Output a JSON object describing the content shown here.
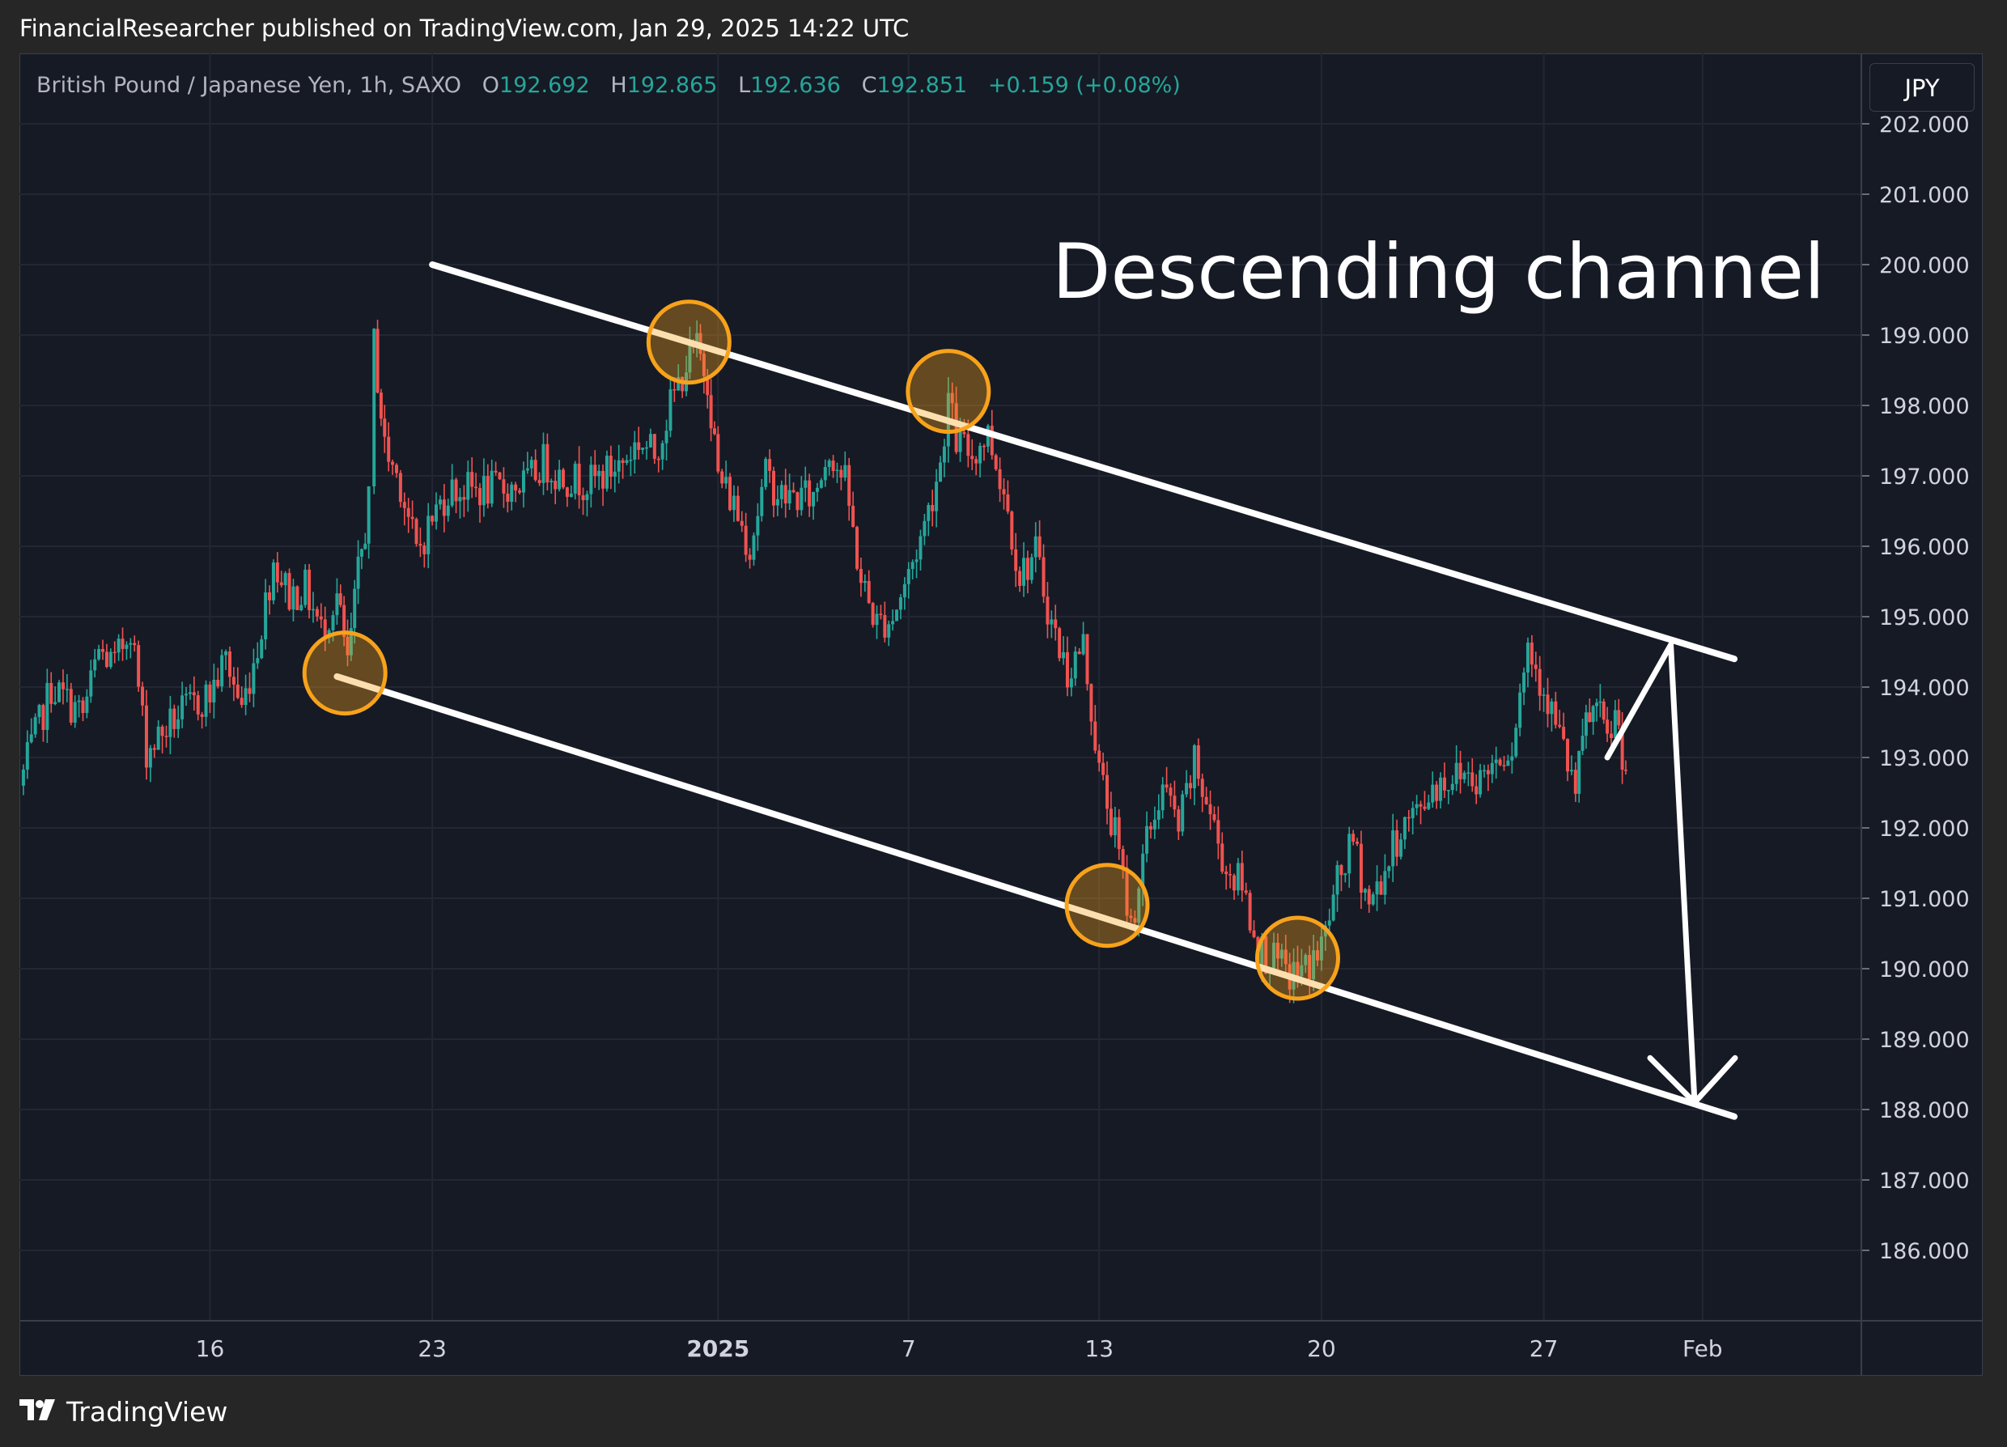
{
  "header": {
    "publish_text": "FinancialResearcher published on TradingView.com, Jan 29, 2025 14:22 UTC"
  },
  "symbol": {
    "name": "British Pound / Japanese Yen, 1h, SAXO",
    "open_label": "O",
    "open": "192.692",
    "high_label": "H",
    "high": "192.865",
    "low_label": "L",
    "low": "192.636",
    "close_label": "C",
    "close": "192.851",
    "change": "+0.159 (+0.08%)"
  },
  "currency_button": "JPY",
  "footer": {
    "brand": "TradingView"
  },
  "colors": {
    "up": "#26a69a",
    "down": "#ef5350",
    "channel": "#ffffff",
    "marker": "#f7a21b",
    "grid": "#232734",
    "background": "#161a25"
  },
  "chart_data": {
    "type": "candlestick",
    "title": "",
    "annotation": "Descending channel",
    "ylim": [
      185.0,
      203.0
    ],
    "y_ticks": [
      "202.000",
      "201.000",
      "200.000",
      "199.000",
      "198.000",
      "197.000",
      "196.000",
      "195.000",
      "194.000",
      "193.000",
      "192.000",
      "191.000",
      "190.000",
      "189.000",
      "188.000",
      "187.000",
      "186.000"
    ],
    "x_ticks": [
      "16",
      "23",
      "2025",
      "7",
      "13",
      "20",
      "27",
      "Feb"
    ],
    "x_tick_dates": [
      "2024-12-16",
      "2024-12-23",
      "2025-01-01",
      "2025-01-07",
      "2025-01-13",
      "2025-01-20",
      "2025-01-27",
      "2025-02-01"
    ],
    "x_range": [
      "2024-12-10",
      "2025-02-06"
    ],
    "price_path": [
      {
        "date": "2024-12-10T00:00",
        "price": 192.6
      },
      {
        "date": "2024-12-11T00:00",
        "price": 194.0
      },
      {
        "date": "2024-12-12T00:00",
        "price": 193.6
      },
      {
        "date": "2024-12-12T12:00",
        "price": 194.5
      },
      {
        "date": "2024-12-13T00:00",
        "price": 194.3
      },
      {
        "date": "2024-12-13T12:00",
        "price": 194.9
      },
      {
        "date": "2024-12-14T00:00",
        "price": 193.1
      },
      {
        "date": "2024-12-15T00:00",
        "price": 193.6
      },
      {
        "date": "2024-12-16T00:00",
        "price": 193.9
      },
      {
        "date": "2024-12-16T12:00",
        "price": 194.4
      },
      {
        "date": "2024-12-17T00:00",
        "price": 193.7
      },
      {
        "date": "2024-12-17T12:00",
        "price": 194.6
      },
      {
        "date": "2024-12-18T00:00",
        "price": 195.8
      },
      {
        "date": "2024-12-18T12:00",
        "price": 195.3
      },
      {
        "date": "2024-12-19T00:00",
        "price": 195.4
      },
      {
        "date": "2024-12-19T12:00",
        "price": 194.8
      },
      {
        "date": "2024-12-20T00:00",
        "price": 195.3
      },
      {
        "date": "2024-12-20T08:00",
        "price": 194.3
      },
      {
        "date": "2024-12-20T16:00",
        "price": 195.6
      },
      {
        "date": "2024-12-21T00:00",
        "price": 196.6
      },
      {
        "date": "2024-12-21T04:00",
        "price": 198.9
      },
      {
        "date": "2024-12-21T12:00",
        "price": 197.4
      },
      {
        "date": "2024-12-22T00:00",
        "price": 196.9
      },
      {
        "date": "2024-12-22T12:00",
        "price": 195.9
      },
      {
        "date": "2024-12-23T00:00",
        "price": 196.4
      },
      {
        "date": "2024-12-23T12:00",
        "price": 196.8
      },
      {
        "date": "2024-12-24T00:00",
        "price": 196.8
      },
      {
        "date": "2024-12-25T00:00",
        "price": 196.8
      },
      {
        "date": "2024-12-26T00:00",
        "price": 196.9
      },
      {
        "date": "2024-12-26T12:00",
        "price": 197.2
      },
      {
        "date": "2024-12-27T00:00",
        "price": 197.0
      },
      {
        "date": "2024-12-28T00:00",
        "price": 196.9
      },
      {
        "date": "2024-12-29T00:00",
        "price": 197.2
      },
      {
        "date": "2024-12-29T12:00",
        "price": 197.5
      },
      {
        "date": "2024-12-30T00:00",
        "price": 197.3
      },
      {
        "date": "2024-12-30T12:00",
        "price": 198.0
      },
      {
        "date": "2024-12-31T00:00",
        "price": 198.6
      },
      {
        "date": "2024-12-31T08:00",
        "price": 198.8
      },
      {
        "date": "2024-12-31T16:00",
        "price": 198.4
      },
      {
        "date": "2025-01-01T00:00",
        "price": 197.0
      },
      {
        "date": "2025-01-01T12:00",
        "price": 196.6
      },
      {
        "date": "2025-01-02T00:00",
        "price": 196.0
      },
      {
        "date": "2025-01-02T12:00",
        "price": 197.0
      },
      {
        "date": "2025-01-03T00:00",
        "price": 196.7
      },
      {
        "date": "2025-01-04T00:00",
        "price": 196.7
      },
      {
        "date": "2025-01-04T12:00",
        "price": 197.4
      },
      {
        "date": "2025-01-05T00:00",
        "price": 196.9
      },
      {
        "date": "2025-01-05T12:00",
        "price": 195.5
      },
      {
        "date": "2025-01-06T00:00",
        "price": 194.9
      },
      {
        "date": "2025-01-06T12:00",
        "price": 195.0
      },
      {
        "date": "2025-01-07T00:00",
        "price": 195.6
      },
      {
        "date": "2025-01-07T12:00",
        "price": 196.3
      },
      {
        "date": "2025-01-08T00:00",
        "price": 197.2
      },
      {
        "date": "2025-01-08T06:00",
        "price": 198.1
      },
      {
        "date": "2025-01-08T12:00",
        "price": 197.5
      },
      {
        "date": "2025-01-09T00:00",
        "price": 197.3
      },
      {
        "date": "2025-01-09T12:00",
        "price": 197.6
      },
      {
        "date": "2025-01-10T00:00",
        "price": 196.8
      },
      {
        "date": "2025-01-10T12:00",
        "price": 195.6
      },
      {
        "date": "2025-01-11T00:00",
        "price": 195.9
      },
      {
        "date": "2025-01-11T12:00",
        "price": 194.9
      },
      {
        "date": "2025-01-12T00:00",
        "price": 194.2
      },
      {
        "date": "2025-01-12T12:00",
        "price": 194.6
      },
      {
        "date": "2025-01-13T00:00",
        "price": 192.8
      },
      {
        "date": "2025-01-13T12:00",
        "price": 191.9
      },
      {
        "date": "2025-01-14T00:00",
        "price": 190.6
      },
      {
        "date": "2025-01-14T12:00",
        "price": 191.8
      },
      {
        "date": "2025-01-15T00:00",
        "price": 192.6
      },
      {
        "date": "2025-01-15T12:00",
        "price": 192.0
      },
      {
        "date": "2025-01-16T00:00",
        "price": 192.9
      },
      {
        "date": "2025-01-16T12:00",
        "price": 192.2
      },
      {
        "date": "2025-01-17T00:00",
        "price": 191.4
      },
      {
        "date": "2025-01-17T12:00",
        "price": 191.2
      },
      {
        "date": "2025-01-18T00:00",
        "price": 190.3
      },
      {
        "date": "2025-01-18T12:00",
        "price": 190.1
      },
      {
        "date": "2025-01-19T00:00",
        "price": 189.9
      },
      {
        "date": "2025-01-19T12:00",
        "price": 190.0
      },
      {
        "date": "2025-01-20T00:00",
        "price": 190.3
      },
      {
        "date": "2025-01-20T12:00",
        "price": 191.2
      },
      {
        "date": "2025-01-21T00:00",
        "price": 191.8
      },
      {
        "date": "2025-01-21T12:00",
        "price": 190.9
      },
      {
        "date": "2025-01-22T00:00",
        "price": 191.4
      },
      {
        "date": "2025-01-22T12:00",
        "price": 192.0
      },
      {
        "date": "2025-01-23T00:00",
        "price": 192.2
      },
      {
        "date": "2025-01-23T12:00",
        "price": 192.6
      },
      {
        "date": "2025-01-24T00:00",
        "price": 192.7
      },
      {
        "date": "2025-01-24T12:00",
        "price": 192.8
      },
      {
        "date": "2025-01-25T00:00",
        "price": 192.7
      },
      {
        "date": "2025-01-25T12:00",
        "price": 193.0
      },
      {
        "date": "2025-01-26T00:00",
        "price": 193.2
      },
      {
        "date": "2025-01-26T12:00",
        "price": 194.6
      },
      {
        "date": "2025-01-27T00:00",
        "price": 194.0
      },
      {
        "date": "2025-01-27T12:00",
        "price": 193.3
      },
      {
        "date": "2025-01-28T00:00",
        "price": 192.5
      },
      {
        "date": "2025-01-28T08:00",
        "price": 193.5
      },
      {
        "date": "2025-01-28T16:00",
        "price": 193.7
      },
      {
        "date": "2025-01-29T00:00",
        "price": 193.2
      },
      {
        "date": "2025-01-29T06:00",
        "price": 193.6
      },
      {
        "date": "2025-01-29T14:00",
        "price": 192.85
      }
    ],
    "channel_lines": [
      {
        "start": {
          "date": "2024-12-23",
          "price": 200.0
        },
        "end": {
          "date": "2025-02-02",
          "price": 194.4
        }
      },
      {
        "start": {
          "date": "2024-12-20",
          "price": 194.15
        },
        "end": {
          "date": "2025-02-02",
          "price": 187.9
        }
      }
    ],
    "touch_points": [
      {
        "date": "2024-12-20T06:00",
        "price": 194.2
      },
      {
        "date": "2024-12-31T02:00",
        "price": 198.9
      },
      {
        "date": "2025-01-08T06:00",
        "price": 198.2
      },
      {
        "date": "2025-01-13T06:00",
        "price": 190.9
      },
      {
        "date": "2025-01-19T06:00",
        "price": 190.15
      }
    ],
    "projection_arrow": [
      {
        "date": "2025-01-29T00:00",
        "price": 193.0
      },
      {
        "date": "2025-01-31T00:00",
        "price": 194.6
      },
      {
        "date": "2025-01-31T18:00",
        "price": 188.1
      }
    ]
  }
}
